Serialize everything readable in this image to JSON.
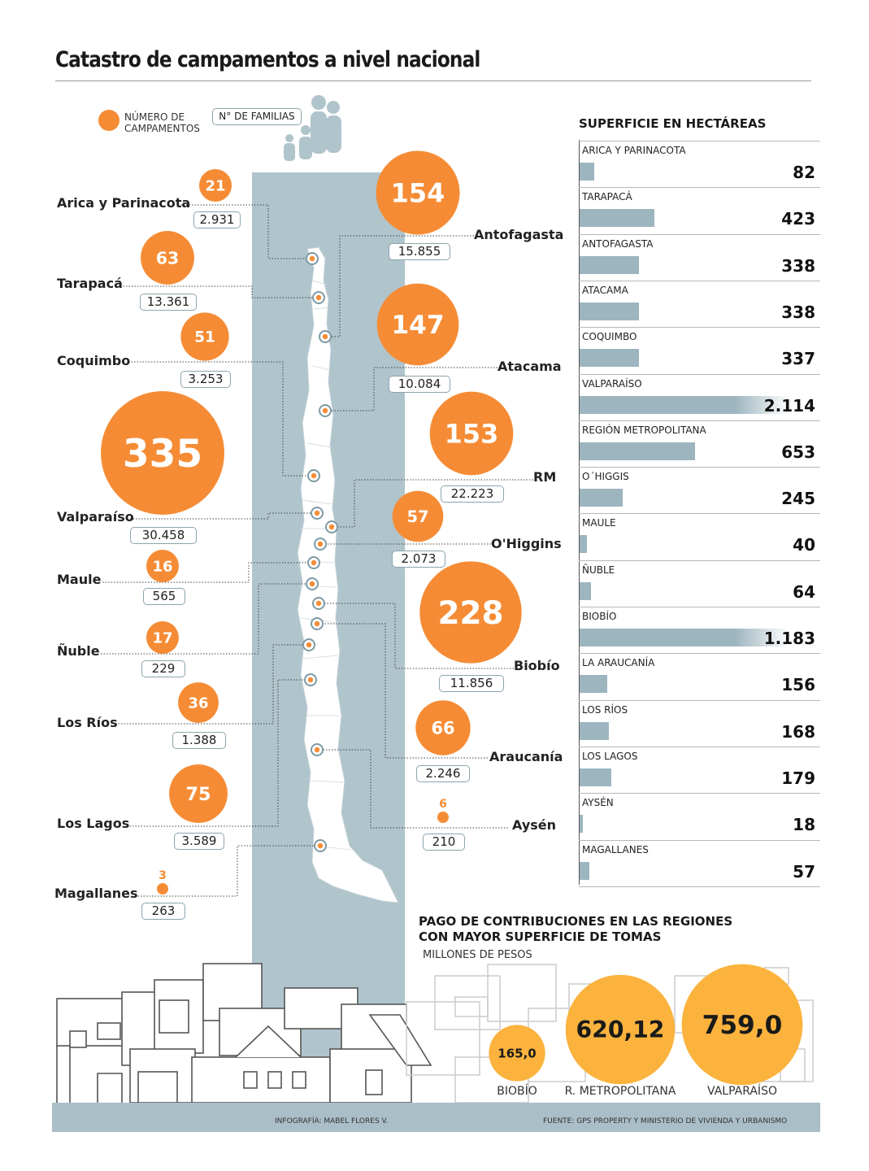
{
  "title": "Catastro de campamentos a nivel nacional",
  "legend": {
    "campamentos_label_1": "NÚMERO DE",
    "campamentos_label_2": "CAMPAMENTOS",
    "familias_label": "N° DE FAMILIAS"
  },
  "colors": {
    "orange": "#f58c35",
    "steel": "#b0c4cc",
    "bar": "#9db5bf",
    "yellow": "#fbb33d"
  },
  "chart_data": [
    {
      "type": "bubble-map",
      "series": [
        "Número de campamentos",
        "N° de familias"
      ],
      "regions": [
        {
          "name": "Arica y Parinacota",
          "campamentos": 21,
          "familias": "2.931"
        },
        {
          "name": "Antofagasta",
          "campamentos": 154,
          "familias": "15.855"
        },
        {
          "name": "Tarapacá",
          "campamentos": 63,
          "familias": "13.361"
        },
        {
          "name": "Atacama",
          "campamentos": 147,
          "familias": "10.084"
        },
        {
          "name": "Coquimbo",
          "campamentos": 51,
          "familias": "3.253"
        },
        {
          "name": "Valparaíso",
          "campamentos": 335,
          "familias": "30.458"
        },
        {
          "name": "RM",
          "campamentos": 153,
          "familias": "22.223"
        },
        {
          "name": "O'Higgins",
          "campamentos": 57,
          "familias": "2.073"
        },
        {
          "name": "Maule",
          "campamentos": 16,
          "familias": "565"
        },
        {
          "name": "Ñuble",
          "campamentos": 17,
          "familias": "229"
        },
        {
          "name": "Biobío",
          "campamentos": 228,
          "familias": "11.856"
        },
        {
          "name": "Los Ríos",
          "campamentos": 36,
          "familias": "1.388"
        },
        {
          "name": "Araucanía",
          "campamentos": 66,
          "familias": "2.246"
        },
        {
          "name": "Los Lagos",
          "campamentos": 75,
          "familias": "3.589"
        },
        {
          "name": "Aysén",
          "campamentos": 6,
          "familias": "210"
        },
        {
          "name": "Magallanes",
          "campamentos": 3,
          "familias": "263"
        }
      ]
    },
    {
      "type": "bar",
      "title": "SUPERFICIE EN HECTÁREAS",
      "categories": [
        "ARICA Y PARINACOTA",
        "TARAPACÁ",
        "ANTOFAGASTA",
        "ATACAMA",
        "COQUIMBO",
        "VALPARAÍSO",
        "REGIÓN METROPOLITANA",
        "O´HIGGIS",
        "MAULE",
        "ÑUBLE",
        "BIOBÍO",
        "LA ARAUCANÍA",
        "LOS RÍOS",
        "LOS LAGOS",
        "AYSÉN",
        "MAGALLANES"
      ],
      "values": [
        82,
        423,
        338,
        338,
        337,
        2114,
        653,
        245,
        40,
        64,
        1183,
        156,
        168,
        179,
        18,
        57
      ],
      "labels": [
        "82",
        "423",
        "338",
        "338",
        "337",
        "2.114",
        "653",
        "245",
        "40",
        "64",
        "1.183",
        "156",
        "168",
        "179",
        "18",
        "57"
      ]
    },
    {
      "type": "bubble",
      "title": "PAGO DE CONTRIBUCIONES EN LAS REGIONES CON MAYOR SUPERFICIE DE TOMAS",
      "subtitle": "MILLONES DE PESOS",
      "categories": [
        "BIOBÍO",
        "R. METROPOLITANA",
        "VALPARAÍSO"
      ],
      "values": [
        165.0,
        620.12,
        759.0
      ],
      "labels": [
        "165,0",
        "620,12",
        "759,0"
      ]
    }
  ],
  "pago_title_1": "PAGO DE CONTRIBUCIONES EN LAS REGIONES",
  "pago_title_2": "CON MAYOR SUPERFICIE DE TOMAS",
  "credits": {
    "infografia": "INFOGRAFÍA: MABEL FLORES V.",
    "fuente": "FUENTE: GPS PROPERTY Y MINISTERIO DE VIVIENDA Y URBANISMO"
  }
}
